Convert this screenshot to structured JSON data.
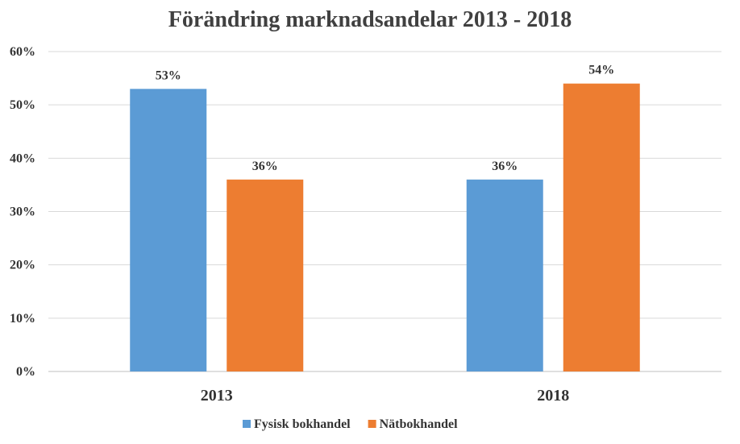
{
  "chart_data": {
    "type": "bar",
    "title": "Förändring marknadsandelar 2013 - 2018",
    "categories": [
      "2013",
      "2018"
    ],
    "series": [
      {
        "name": "Fysisk bokhandel",
        "values": [
          53,
          36
        ],
        "labels": [
          "53%",
          "36%"
        ],
        "color": "#5b9bd5"
      },
      {
        "name": "Nätbokhandel",
        "values": [
          36,
          54
        ],
        "labels": [
          "36%",
          "54%"
        ],
        "color": "#ed7d31"
      }
    ],
    "ylim": [
      0,
      60
    ],
    "yticks": [
      0,
      10,
      20,
      30,
      40,
      50,
      60
    ],
    "ytick_labels": [
      "0%",
      "10%",
      "20%",
      "30%",
      "40%",
      "50%",
      "60%"
    ],
    "grid": true,
    "legend_position": "bottom",
    "xlabel": "",
    "ylabel": ""
  }
}
